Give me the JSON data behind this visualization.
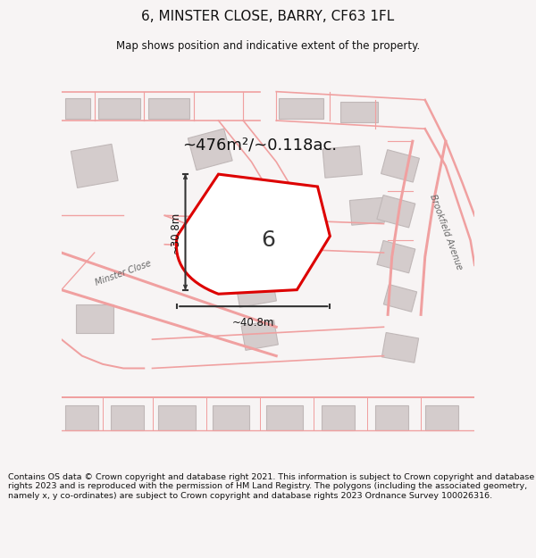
{
  "title": "6, MINSTER CLOSE, BARRY, CF63 1FL",
  "subtitle": "Map shows position and indicative extent of the property.",
  "footer": "Contains OS data © Crown copyright and database right 2021. This information is subject to Crown copyright and database rights 2023 and is reproduced with the permission of HM Land Registry. The polygons (including the associated geometry, namely x, y co-ordinates) are subject to Crown copyright and database rights 2023 Ordnance Survey 100026316.",
  "bg_color": "#f7f4f4",
  "map_bg": "#ffffff",
  "road_color": "#f0a0a0",
  "building_color": "#d4cccc",
  "building_edge": "#c0b8b8",
  "highlight_color": "#dd0000",
  "arrow_color": "#333333",
  "area_text": "~476m²/~0.118ac.",
  "label_6": "6",
  "label_width": "~40.8m",
  "label_height": "~30.8m",
  "minster_close": "Minster Close",
  "brookfield_avenue": "Brookfield Avenue"
}
